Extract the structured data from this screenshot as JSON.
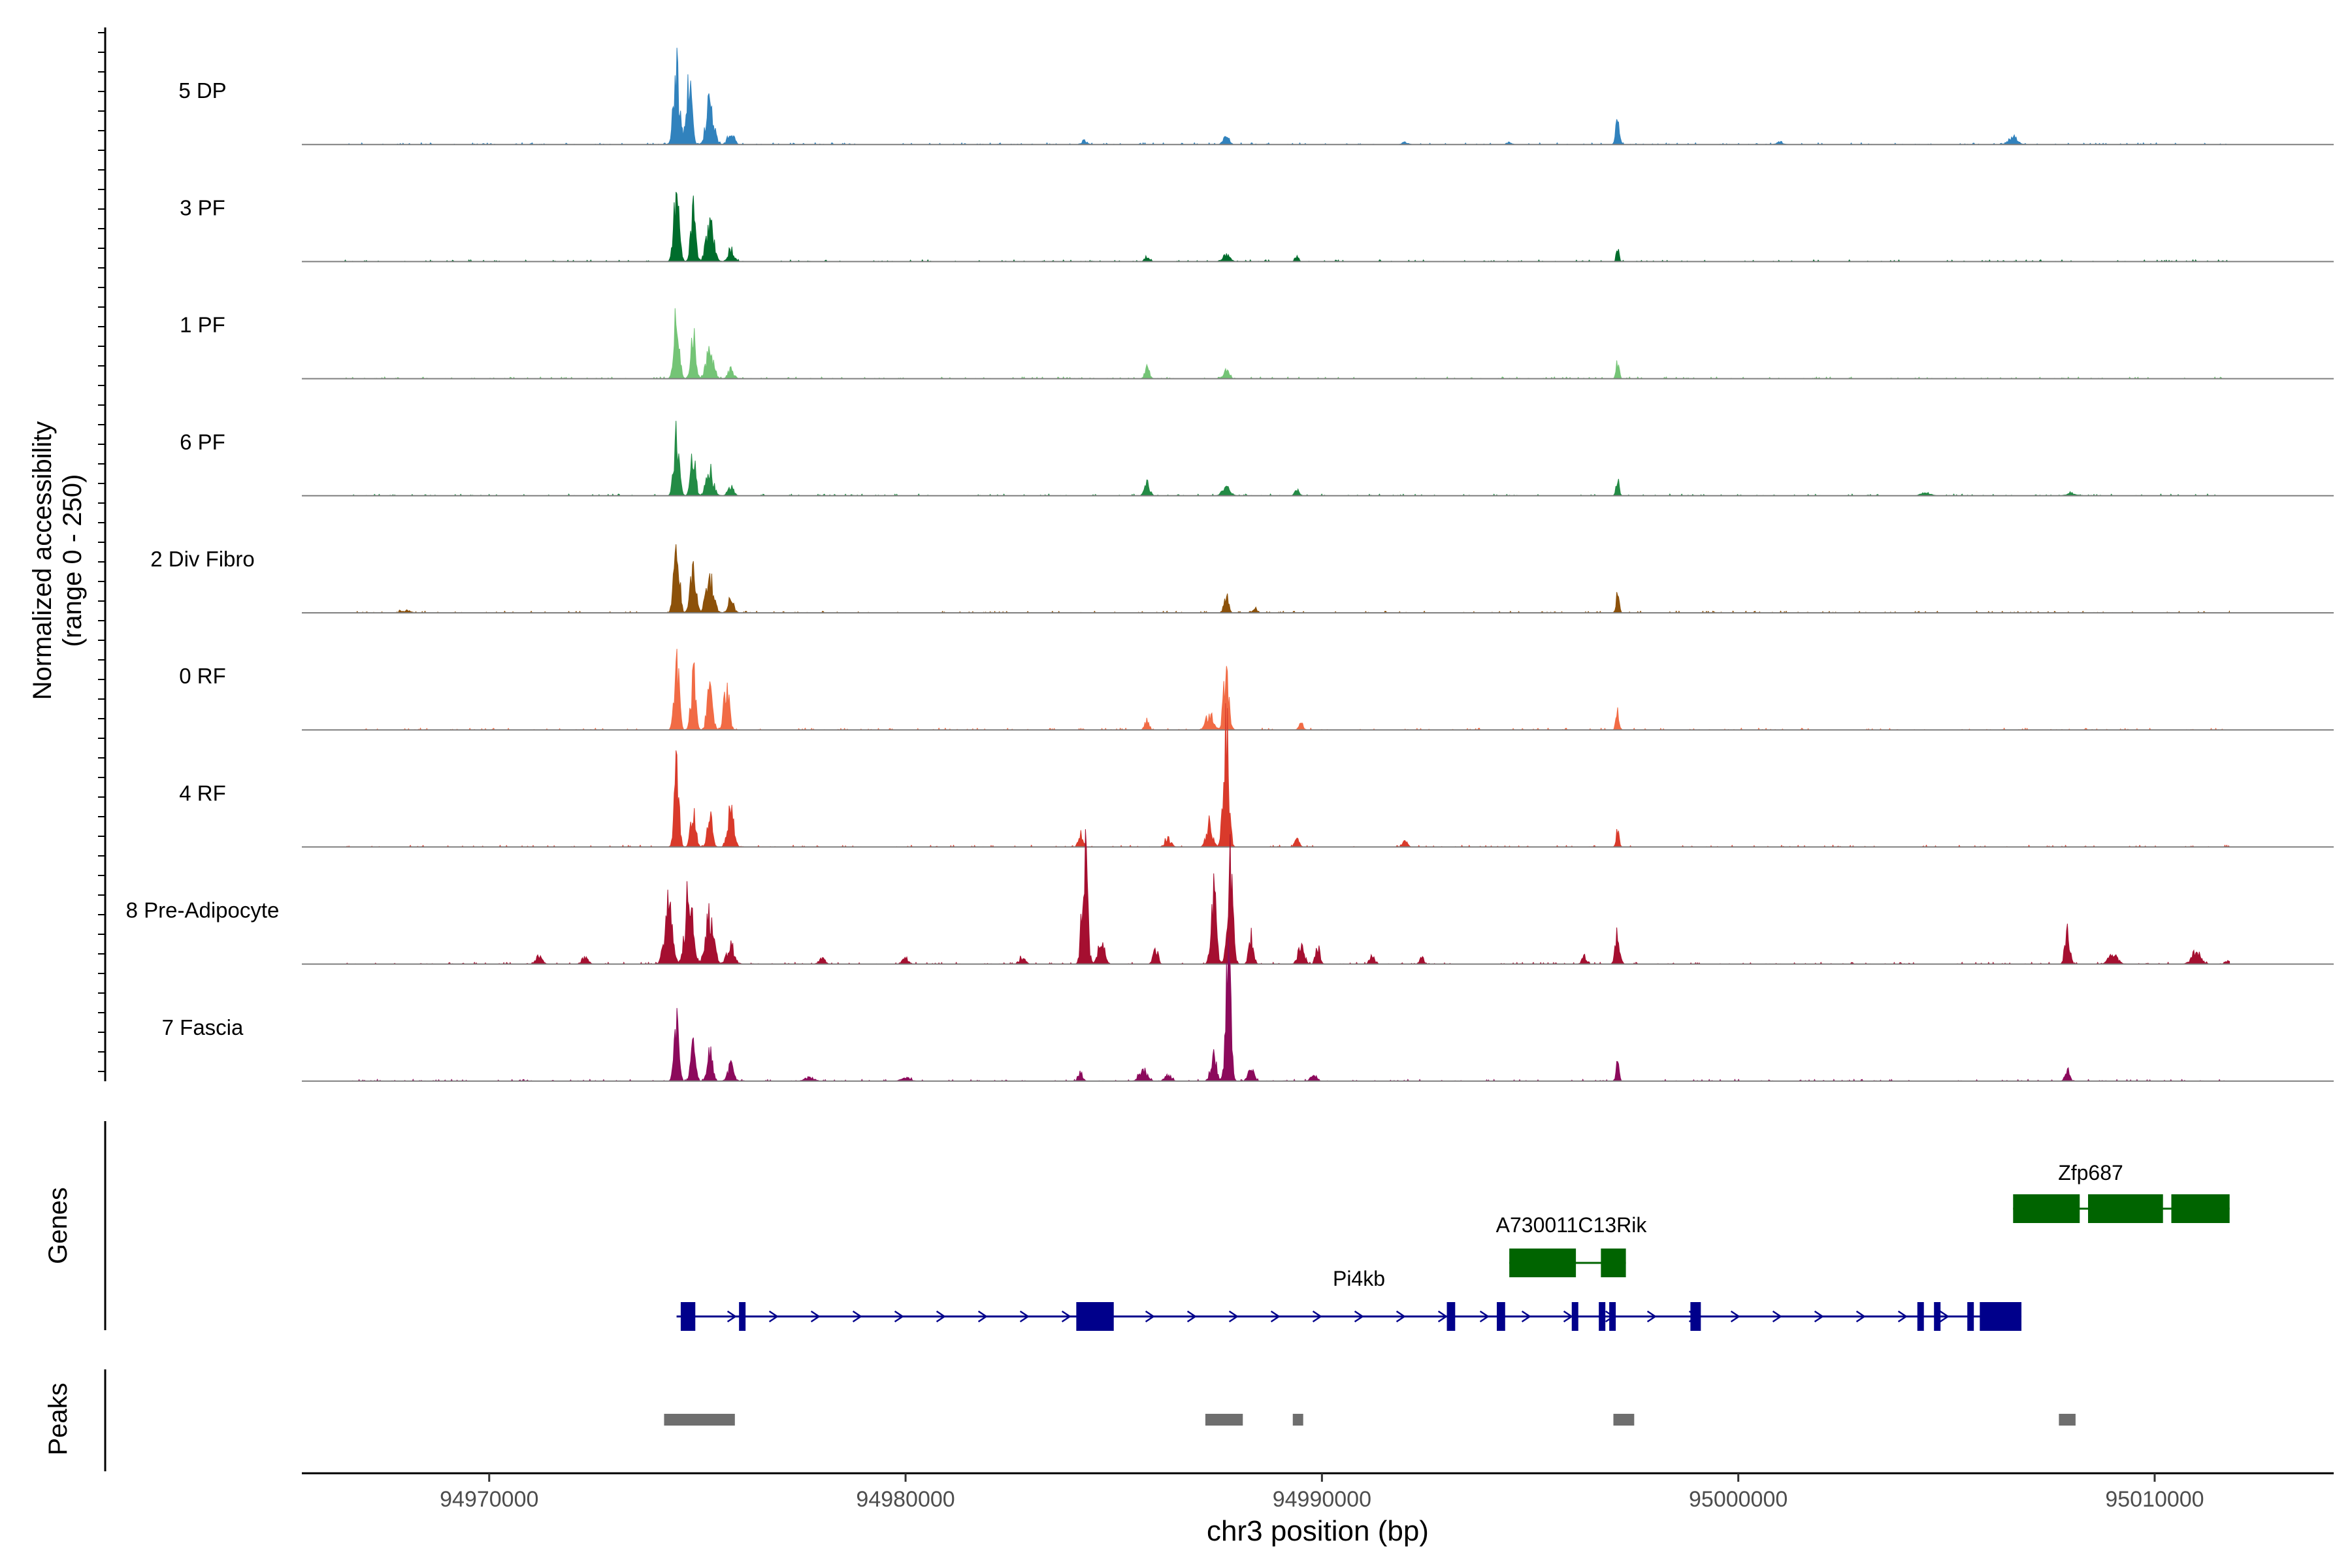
{
  "chart_data": {
    "type": "coverage-track",
    "y_axis_title_line1": "Normalized accessibility",
    "y_axis_title_line2": "(range 0 - 250)",
    "y_range": [
      0,
      250
    ],
    "x_axis_title": "chr3 position (bp)",
    "x_range": [
      94965500,
      95014300
    ],
    "x_ticks": [
      94970000,
      94980000,
      94990000,
      95000000,
      95010000
    ],
    "x_tick_labels": [
      "94970000",
      "94980000",
      "94990000",
      "95000000",
      "95010000"
    ],
    "tracks": [
      {
        "name": "5 DP",
        "color": "#3182bd",
        "peaks": [
          [
            94974500,
            120,
            200
          ],
          [
            94974800,
            100,
            180
          ],
          [
            94975300,
            70,
            250
          ],
          [
            94975800,
            20,
            200
          ],
          [
            94984300,
            6,
            200
          ],
          [
            94987700,
            12,
            200
          ],
          [
            94997100,
            40,
            120
          ],
          [
            95006600,
            12,
            300
          ],
          [
            94992000,
            4,
            200
          ],
          [
            94994500,
            4,
            150
          ],
          [
            95001000,
            4,
            200
          ]
        ]
      },
      {
        "name": "3 PF",
        "color": "#006d2c",
        "peaks": [
          [
            94974500,
            115,
            180
          ],
          [
            94974900,
            80,
            160
          ],
          [
            94975300,
            60,
            250
          ],
          [
            94975800,
            20,
            200
          ],
          [
            94985800,
            8,
            150
          ],
          [
            94987700,
            10,
            250
          ],
          [
            94989400,
            8,
            120
          ],
          [
            94997100,
            30,
            80
          ]
        ]
      },
      {
        "name": "1 PF",
        "color": "#74c476",
        "peaks": [
          [
            94974500,
            100,
            180
          ],
          [
            94974900,
            70,
            160
          ],
          [
            94975300,
            45,
            250
          ],
          [
            94975800,
            15,
            200
          ],
          [
            94985800,
            20,
            150
          ],
          [
            94987700,
            18,
            180
          ],
          [
            94997100,
            30,
            100
          ]
        ]
      },
      {
        "name": "6 PF",
        "color": "#238b45",
        "peaks": [
          [
            94974500,
            100,
            180
          ],
          [
            94974900,
            65,
            160
          ],
          [
            94975300,
            40,
            250
          ],
          [
            94975800,
            15,
            200
          ],
          [
            94985800,
            20,
            180
          ],
          [
            94987700,
            15,
            250
          ],
          [
            94989400,
            10,
            150
          ],
          [
            94997100,
            28,
            100
          ],
          [
            95004500,
            5,
            300
          ],
          [
            95008000,
            4,
            300
          ]
        ]
      },
      {
        "name": "2 Div Fibro",
        "color": "#8c510a",
        "peaks": [
          [
            94974500,
            115,
            180
          ],
          [
            94974900,
            85,
            180
          ],
          [
            94975300,
            55,
            250
          ],
          [
            94975800,
            20,
            200
          ],
          [
            94987700,
            30,
            150
          ],
          [
            94988400,
            6,
            150
          ],
          [
            94997100,
            32,
            100
          ],
          [
            94968000,
            3,
            400
          ]
        ]
      },
      {
        "name": "0 RF",
        "color": "#f16b45",
        "peaks": [
          [
            94974500,
            120,
            160
          ],
          [
            94974900,
            90,
            160
          ],
          [
            94975300,
            75,
            180
          ],
          [
            94975700,
            70,
            180
          ],
          [
            94985800,
            15,
            150
          ],
          [
            94987700,
            90,
            180
          ],
          [
            94987300,
            25,
            250
          ],
          [
            94989500,
            10,
            150
          ],
          [
            94997100,
            40,
            100
          ]
        ]
      },
      {
        "name": "4 RF",
        "color": "#d93a2b",
        "peaks": [
          [
            94974500,
            120,
            160
          ],
          [
            94974900,
            70,
            160
          ],
          [
            94975300,
            50,
            160
          ],
          [
            94975800,
            60,
            200
          ],
          [
            94984200,
            20,
            150
          ],
          [
            94986300,
            14,
            200
          ],
          [
            94987700,
            200,
            180
          ],
          [
            94987300,
            40,
            200
          ],
          [
            94989400,
            12,
            150
          ],
          [
            94992000,
            10,
            150
          ],
          [
            94997100,
            28,
            100
          ]
        ]
      },
      {
        "name": "8 Pre-Adipocyte",
        "color": "#a50f30",
        "peaks": [
          [
            94974300,
            100,
            250
          ],
          [
            94974800,
            120,
            250
          ],
          [
            94975300,
            90,
            250
          ],
          [
            94975800,
            30,
            250
          ],
          [
            94984300,
            185,
            180
          ],
          [
            94984700,
            40,
            200
          ],
          [
            94986000,
            30,
            150
          ],
          [
            94987400,
            110,
            180
          ],
          [
            94987800,
            160,
            180
          ],
          [
            94988300,
            50,
            150
          ],
          [
            94989500,
            35,
            200
          ],
          [
            94989900,
            25,
            150
          ],
          [
            94991200,
            15,
            150
          ],
          [
            94992400,
            10,
            150
          ],
          [
            94997100,
            50,
            150
          ],
          [
            94996300,
            15,
            150
          ],
          [
            94971200,
            15,
            200
          ],
          [
            94972300,
            12,
            200
          ],
          [
            94978000,
            10,
            200
          ],
          [
            94980000,
            10,
            200
          ],
          [
            94982800,
            10,
            200
          ],
          [
            95007900,
            60,
            150
          ],
          [
            95009000,
            15,
            300
          ],
          [
            95011000,
            20,
            300
          ],
          [
            95011800,
            8,
            200
          ]
        ]
      },
      {
        "name": "7 Fascia",
        "color": "#8c0a5c",
        "peaks": [
          [
            94974500,
            90,
            160
          ],
          [
            94974900,
            70,
            160
          ],
          [
            94975300,
            60,
            160
          ],
          [
            94975800,
            25,
            200
          ],
          [
            94984200,
            15,
            150
          ],
          [
            94985700,
            22,
            250
          ],
          [
            94986300,
            12,
            200
          ],
          [
            94987400,
            40,
            200
          ],
          [
            94987750,
            215,
            160
          ],
          [
            94988300,
            20,
            200
          ],
          [
            94989800,
            10,
            200
          ],
          [
            94997100,
            28,
            100
          ],
          [
            95007900,
            20,
            150
          ],
          [
            94977700,
            6,
            300
          ],
          [
            94980000,
            6,
            300
          ]
        ]
      }
    ],
    "genes_track": {
      "label": "Genes",
      "genes": [
        {
          "name": "Pi4kb",
          "strand": "+",
          "color": "#00008b",
          "start": 94974500,
          "end": 95006800,
          "exons": [
            [
              94974600,
              94974950
            ],
            [
              94976000,
              94976120
            ],
            [
              94984100,
              94985000
            ],
            [
              94993000,
              94993200
            ],
            [
              94994200,
              94994400
            ],
            [
              94996000,
              94996120
            ],
            [
              94996650,
              94996760
            ],
            [
              94996900,
              94997010
            ],
            [
              94998850,
              94999100
            ],
            [
              95004300,
              95004420
            ],
            [
              95004700,
              95004820
            ],
            [
              95005500,
              95005560
            ],
            [
              95005800,
              95006800
            ]
          ]
        },
        {
          "name": "A730011C13Rik",
          "strand": "-",
          "color": "#006400",
          "start": 94994500,
          "end": 94997300,
          "exons": [
            [
              94994500,
              94996100
            ],
            [
              94996700,
              94997300
            ]
          ]
        },
        {
          "name": "Zfp687",
          "strand": "+",
          "color": "#006400",
          "start": 95006600,
          "end": 95011800,
          "exons": [
            [
              95006600,
              95008200
            ],
            [
              95008400,
              95010200
            ],
            [
              95010400,
              95011800
            ]
          ]
        }
      ]
    },
    "peaks_track": {
      "label": "Peaks",
      "regions": [
        [
          94974200,
          94975900
        ],
        [
          94987200,
          94988100
        ],
        [
          94989300,
          94989550
        ],
        [
          94997000,
          94997500
        ],
        [
          95007700,
          95008100
        ]
      ]
    }
  }
}
